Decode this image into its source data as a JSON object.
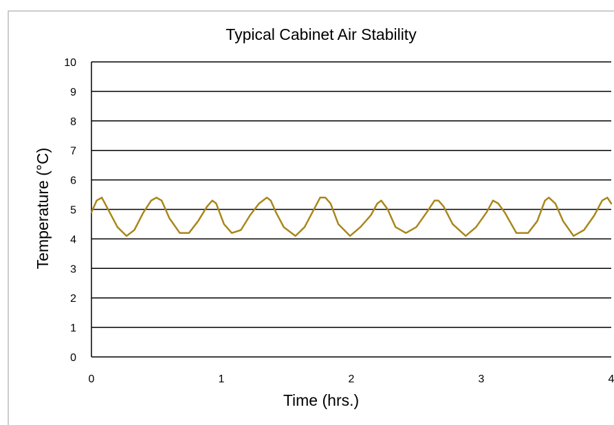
{
  "chart_data": {
    "type": "line",
    "title": "Typical Cabinet Air Stability",
    "xlabel": "Time (hrs.)",
    "ylabel": "Temperature (°C)",
    "xlim": [
      0,
      4
    ],
    "ylim": [
      0,
      10
    ],
    "x_ticks": [
      "0",
      "1",
      "2",
      "3",
      "4"
    ],
    "y_ticks": [
      "0",
      "1",
      "2",
      "3",
      "4",
      "5",
      "6",
      "7",
      "8",
      "9",
      "10"
    ],
    "grid": true,
    "legend": "none",
    "series": [
      {
        "color": "#A8861A",
        "x": [
          0.0,
          0.04,
          0.08,
          0.14,
          0.2,
          0.27,
          0.33,
          0.4,
          0.46,
          0.5,
          0.54,
          0.6,
          0.68,
          0.75,
          0.82,
          0.89,
          0.93,
          0.96,
          1.02,
          1.08,
          1.15,
          1.22,
          1.29,
          1.35,
          1.38,
          1.42,
          1.48,
          1.57,
          1.64,
          1.7,
          1.76,
          1.8,
          1.84,
          1.9,
          1.99,
          2.07,
          2.15,
          2.2,
          2.23,
          2.28,
          2.34,
          2.42,
          2.5,
          2.58,
          2.64,
          2.67,
          2.71,
          2.78,
          2.88,
          2.96,
          3.04,
          3.09,
          3.13,
          3.18,
          3.27,
          3.36,
          3.43,
          3.49,
          3.52,
          3.57,
          3.63,
          3.71,
          3.79,
          3.87,
          3.93,
          3.97,
          4.0
        ],
        "values": [
          4.9,
          5.3,
          5.4,
          4.9,
          4.4,
          4.1,
          4.3,
          4.9,
          5.3,
          5.4,
          5.3,
          4.7,
          4.2,
          4.2,
          4.6,
          5.1,
          5.3,
          5.2,
          4.5,
          4.2,
          4.3,
          4.8,
          5.2,
          5.4,
          5.3,
          4.9,
          4.4,
          4.1,
          4.4,
          4.9,
          5.4,
          5.4,
          5.2,
          4.5,
          4.1,
          4.4,
          4.8,
          5.2,
          5.3,
          5.0,
          4.4,
          4.2,
          4.4,
          4.9,
          5.3,
          5.3,
          5.1,
          4.5,
          4.1,
          4.4,
          4.9,
          5.3,
          5.2,
          4.9,
          4.2,
          4.2,
          4.6,
          5.3,
          5.4,
          5.2,
          4.6,
          4.1,
          4.3,
          4.8,
          5.3,
          5.4,
          5.2
        ]
      }
    ]
  }
}
